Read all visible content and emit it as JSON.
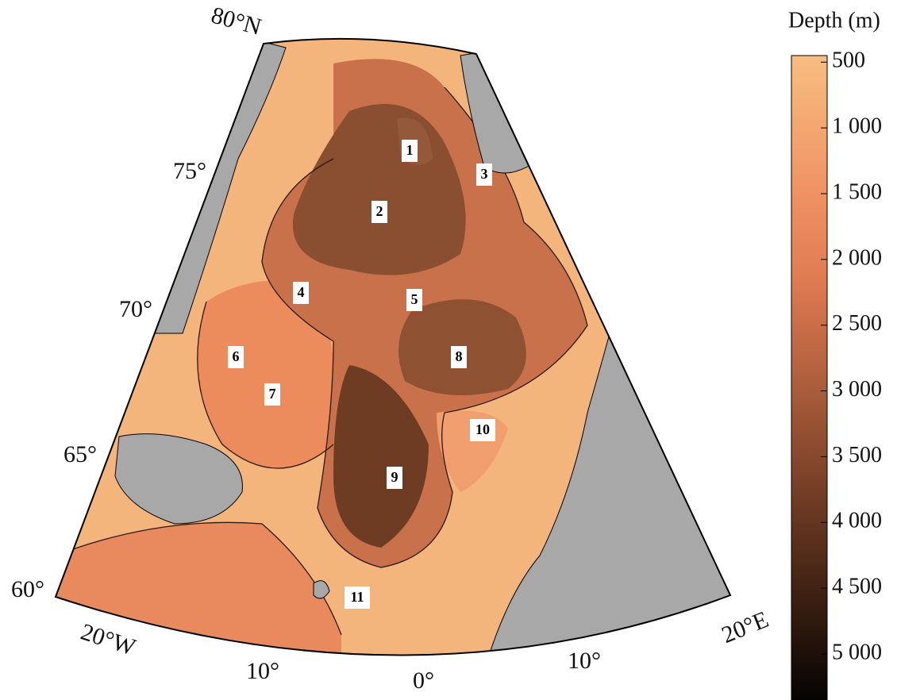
{
  "map": {
    "colorbar": {
      "title": "Depth (m)",
      "range": [
        450,
        5350
      ],
      "ticks": [
        500,
        {
          "value": 1000,
          "label": "1 000"
        },
        {
          "value": 1500,
          "label": "1 500"
        },
        {
          "value": 2000,
          "label": "2 000"
        },
        {
          "value": 2500,
          "label": "2 500"
        },
        {
          "value": 3000,
          "label": "3 000"
        },
        {
          "value": 3500,
          "label": "3 500"
        },
        {
          "value": 4000,
          "label": "4 000"
        },
        {
          "value": 4500,
          "label": "4 500"
        },
        {
          "value": 5000,
          "label": "5 000"
        }
      ]
    },
    "latitude_labels": [
      "80°N",
      "75°",
      "70°",
      "65°",
      "60°"
    ],
    "longitude_labels": [
      "20°W",
      "10°",
      "0°",
      "10°",
      "20°E"
    ],
    "regions": [
      "1",
      "2",
      "3",
      "4",
      "5",
      "6",
      "7",
      "8",
      "9",
      "10",
      "11"
    ]
  }
}
